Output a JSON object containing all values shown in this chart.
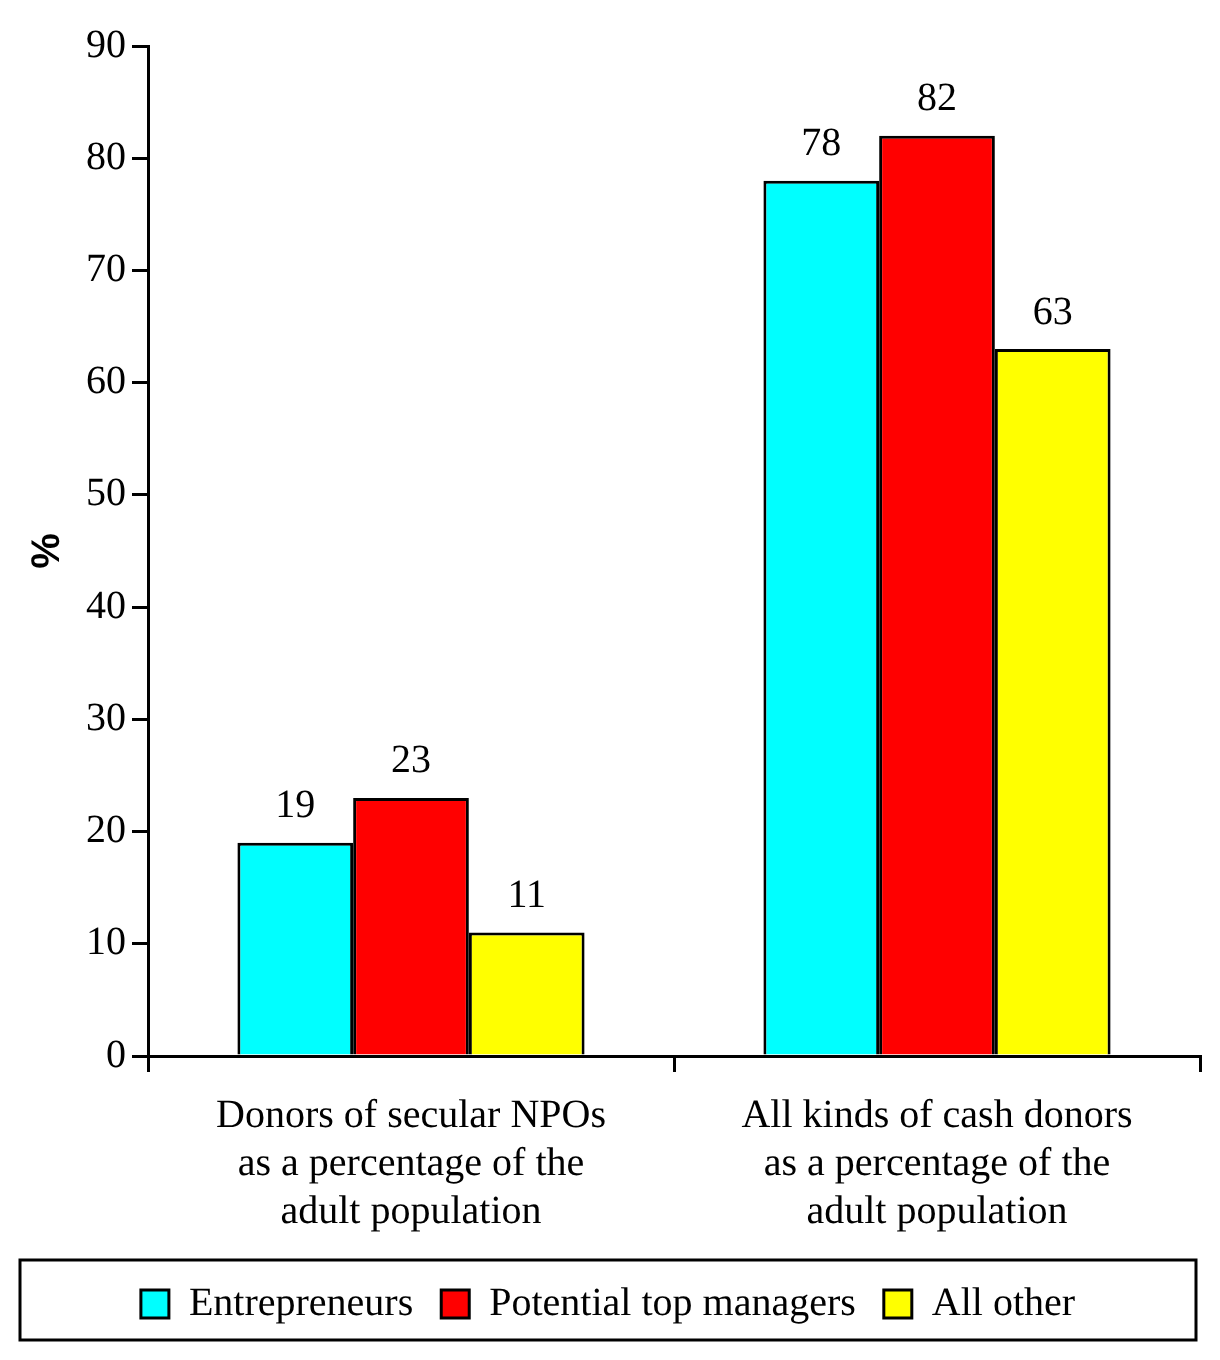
{
  "chart_data": {
    "type": "bar",
    "ylabel": "%",
    "categories": [
      "Donors of secular NPOs as a percentage of the adult population",
      "All kinds of cash donors as a percentage of the adult population"
    ],
    "series": [
      {
        "name": "Entrepreneurs",
        "color": "#00ffff",
        "values": [
          19,
          78
        ]
      },
      {
        "name": "Potential top managers",
        "color": "#ff0000",
        "values": [
          23,
          82
        ]
      },
      {
        "name": "All other",
        "color": "#ffff00",
        "values": [
          11,
          63
        ]
      }
    ],
    "ylim": [
      0,
      90
    ],
    "yticks": [
      0,
      10,
      20,
      30,
      40,
      50,
      60,
      70,
      80,
      90
    ],
    "grid": false,
    "legend": "bottom",
    "data_labels": true
  }
}
